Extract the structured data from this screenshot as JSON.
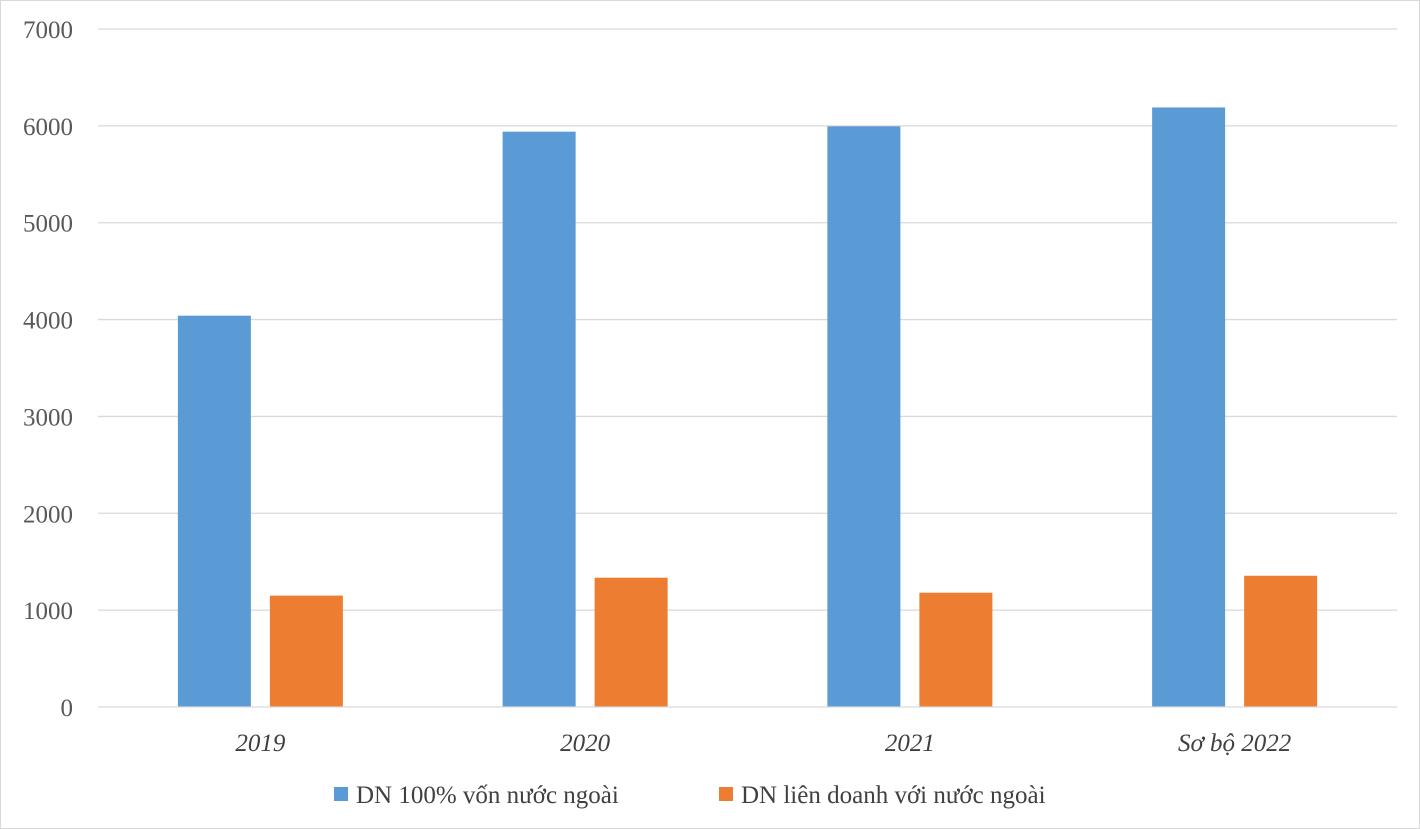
{
  "chart_data": {
    "type": "bar",
    "categories": [
      "2019",
      "2020",
      "2021",
      "Sơ bộ 2022"
    ],
    "series": [
      {
        "name": "DN 100% vốn nước ngoài",
        "color": "#5b9bd5",
        "values": [
          4040,
          5940,
          5995,
          6190
        ]
      },
      {
        "name": "DN liên doanh với nước ngoài",
        "color": "#ed7d31",
        "values": [
          1150,
          1335,
          1180,
          1355
        ]
      }
    ],
    "ylim": [
      0,
      7000
    ],
    "yticks": [
      0,
      1000,
      2000,
      3000,
      4000,
      5000,
      6000,
      7000
    ],
    "grid": true,
    "legend": "bottom",
    "title": "",
    "xlabel": "",
    "ylabel": ""
  }
}
